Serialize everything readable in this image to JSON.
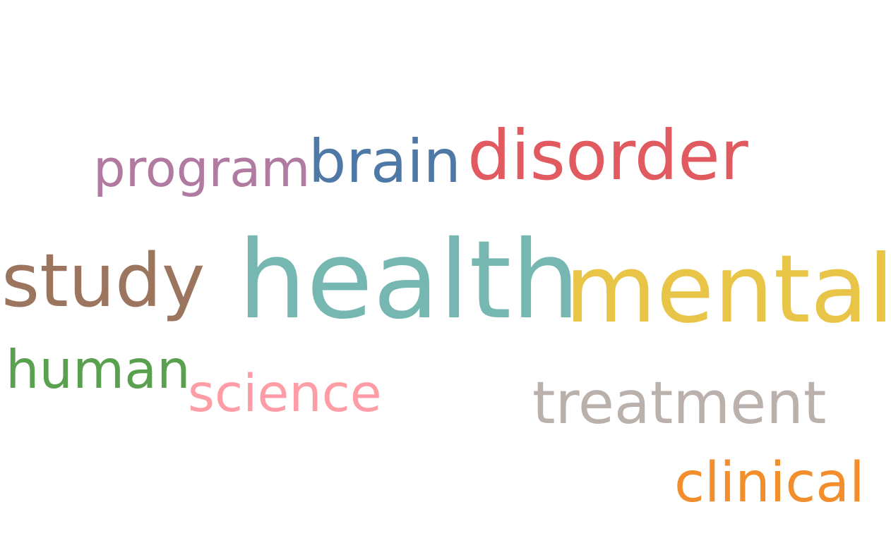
{
  "words": {
    "health": {
      "text": "health",
      "color": "#76b7b2"
    },
    "mental": {
      "text": "mental",
      "color": "#e8c547"
    },
    "disorder": {
      "text": "disorder",
      "color": "#e05a5f"
    },
    "study": {
      "text": "study",
      "color": "#9c755f"
    },
    "brain": {
      "text": "brain",
      "color": "#4e79a7"
    },
    "treatment": {
      "text": "treatment",
      "color": "#bab0ac"
    },
    "program": {
      "text": "program",
      "color": "#b07aa1"
    },
    "human": {
      "text": "human",
      "color": "#59a14f"
    },
    "science": {
      "text": "science",
      "color": "#ff9da7"
    },
    "clinical": {
      "text": "clinical",
      "color": "#f28e2b"
    }
  }
}
